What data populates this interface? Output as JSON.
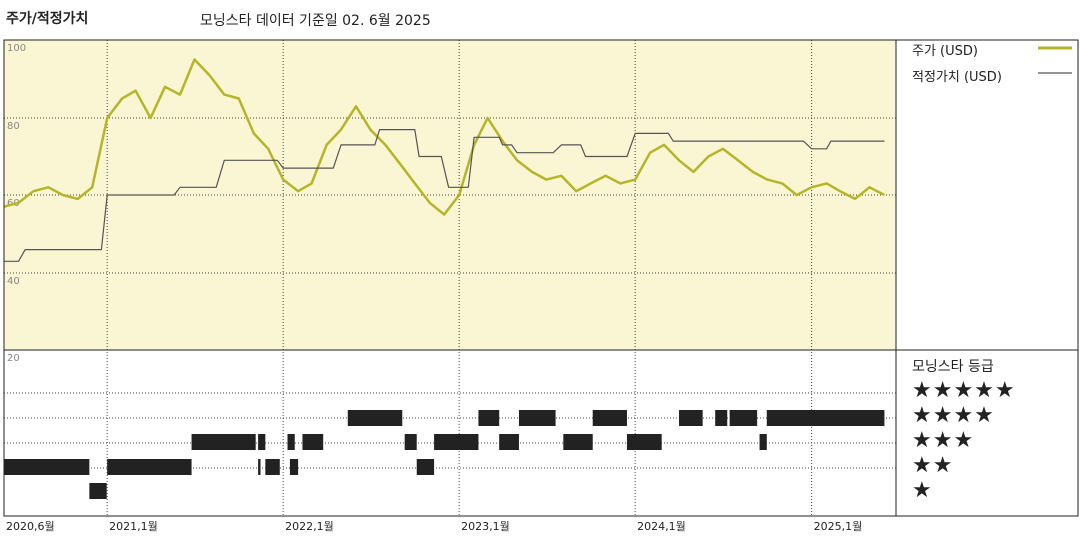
{
  "header": {
    "title": "주가/적정가치",
    "subtitle": "모닝스타 데이터 기준일 02. 6월 2025"
  },
  "legend": {
    "price_label": "주가 (USD)",
    "fair_value_label": "적정가치 (USD)",
    "rating_title": "모닝스타 등급"
  },
  "colors": {
    "price": "#b5b52a",
    "fair_value": "#555555",
    "plot_bg": "#faf5d2",
    "rating_bar": "#222222"
  },
  "rating_levels": [
    "★★★★★",
    "★★★★",
    "★★★",
    "★★",
    "★"
  ],
  "chart_data": {
    "type": "line",
    "title": "",
    "ylim": [
      20,
      100
    ],
    "yticks": [
      20,
      40,
      60,
      80,
      100
    ],
    "xticks": [
      {
        "date": "2020-06-01",
        "label": "2020,6월"
      },
      {
        "date": "2021-01-01",
        "label": "2021,1월"
      },
      {
        "date": "2022-01-01",
        "label": "2022,1월"
      },
      {
        "date": "2023-01-01",
        "label": "2023,1월"
      },
      {
        "date": "2024-01-01",
        "label": "2024,1월"
      },
      {
        "date": "2025-01-01",
        "label": "2025,1월"
      }
    ],
    "series": [
      {
        "name": "주가 (USD)",
        "points": [
          [
            "2020-06-01",
            57
          ],
          [
            "2020-07-01",
            58
          ],
          [
            "2020-08-01",
            61
          ],
          [
            "2020-09-01",
            62
          ],
          [
            "2020-10-01",
            60
          ],
          [
            "2020-11-01",
            59
          ],
          [
            "2020-12-01",
            62
          ],
          [
            "2021-01-01",
            80
          ],
          [
            "2021-02-01",
            85
          ],
          [
            "2021-03-01",
            87
          ],
          [
            "2021-04-01",
            80
          ],
          [
            "2021-05-01",
            88
          ],
          [
            "2021-06-01",
            86
          ],
          [
            "2021-07-01",
            95
          ],
          [
            "2021-08-01",
            91
          ],
          [
            "2021-09-01",
            86
          ],
          [
            "2021-10-01",
            85
          ],
          [
            "2021-11-01",
            76
          ],
          [
            "2021-12-01",
            72
          ],
          [
            "2022-01-01",
            64
          ],
          [
            "2022-02-01",
            61
          ],
          [
            "2022-03-01",
            63
          ],
          [
            "2022-04-01",
            73
          ],
          [
            "2022-05-01",
            77
          ],
          [
            "2022-06-01",
            83
          ],
          [
            "2022-07-01",
            77
          ],
          [
            "2022-08-01",
            73
          ],
          [
            "2022-09-01",
            68
          ],
          [
            "2022-10-01",
            63
          ],
          [
            "2022-11-01",
            58
          ],
          [
            "2022-12-01",
            55
          ],
          [
            "2023-01-01",
            60
          ],
          [
            "2023-02-01",
            73
          ],
          [
            "2023-03-01",
            80
          ],
          [
            "2023-04-01",
            74
          ],
          [
            "2023-05-01",
            69
          ],
          [
            "2023-06-01",
            66
          ],
          [
            "2023-07-01",
            64
          ],
          [
            "2023-08-01",
            65
          ],
          [
            "2023-09-01",
            61
          ],
          [
            "2023-10-01",
            63
          ],
          [
            "2023-11-01",
            65
          ],
          [
            "2023-12-01",
            63
          ],
          [
            "2024-01-01",
            64
          ],
          [
            "2024-02-01",
            71
          ],
          [
            "2024-03-01",
            73
          ],
          [
            "2024-04-01",
            69
          ],
          [
            "2024-05-01",
            66
          ],
          [
            "2024-06-01",
            70
          ],
          [
            "2024-07-01",
            72
          ],
          [
            "2024-08-01",
            69
          ],
          [
            "2024-09-01",
            66
          ],
          [
            "2024-10-01",
            64
          ],
          [
            "2024-11-01",
            63
          ],
          [
            "2024-12-01",
            60
          ],
          [
            "2025-01-01",
            62
          ],
          [
            "2025-02-01",
            63
          ],
          [
            "2025-03-01",
            61
          ],
          [
            "2025-04-01",
            59
          ],
          [
            "2025-05-01",
            62
          ],
          [
            "2025-06-01",
            60
          ]
        ]
      },
      {
        "name": "적정가치 (USD)",
        "points": [
          [
            "2020-06-01",
            43
          ],
          [
            "2020-07-01",
            43
          ],
          [
            "2020-07-15",
            46
          ],
          [
            "2020-12-20",
            46
          ],
          [
            "2021-01-01",
            60
          ],
          [
            "2021-05-20",
            60
          ],
          [
            "2021-06-01",
            62
          ],
          [
            "2021-08-15",
            62
          ],
          [
            "2021-09-01",
            69
          ],
          [
            "2021-12-20",
            69
          ],
          [
            "2022-01-01",
            67
          ],
          [
            "2022-04-15",
            67
          ],
          [
            "2022-05-01",
            73
          ],
          [
            "2022-07-10",
            73
          ],
          [
            "2022-07-20",
            77
          ],
          [
            "2022-10-01",
            77
          ],
          [
            "2022-10-10",
            70
          ],
          [
            "2022-11-25",
            70
          ],
          [
            "2022-12-10",
            62
          ],
          [
            "2023-01-20",
            62
          ],
          [
            "2023-02-01",
            75
          ],
          [
            "2023-03-25",
            75
          ],
          [
            "2023-04-01",
            73
          ],
          [
            "2023-04-20",
            73
          ],
          [
            "2023-05-01",
            71
          ],
          [
            "2023-07-15",
            71
          ],
          [
            "2023-08-01",
            73
          ],
          [
            "2023-09-10",
            73
          ],
          [
            "2023-09-20",
            70
          ],
          [
            "2023-12-15",
            70
          ],
          [
            "2024-01-01",
            76
          ],
          [
            "2024-03-10",
            76
          ],
          [
            "2024-03-20",
            74
          ],
          [
            "2024-12-15",
            74
          ],
          [
            "2025-01-01",
            72
          ],
          [
            "2025-02-01",
            72
          ],
          [
            "2025-02-10",
            74
          ],
          [
            "2025-06-01",
            74
          ]
        ]
      }
    ],
    "rating_history": [
      {
        "stars": 2,
        "start": "2020-06-01",
        "end": "2020-11-25"
      },
      {
        "stars": 1,
        "start": "2020-11-25",
        "end": "2020-12-31"
      },
      {
        "stars": 2,
        "start": "2021-01-01",
        "end": "2021-06-25"
      },
      {
        "stars": 3,
        "start": "2021-06-25",
        "end": "2021-11-05"
      },
      {
        "stars": 3,
        "start": "2021-11-10",
        "end": "2021-11-25"
      },
      {
        "stars": 2,
        "start": "2021-11-10",
        "end": "2021-11-15"
      },
      {
        "stars": 2,
        "start": "2021-11-25",
        "end": "2021-12-25"
      },
      {
        "stars": 3,
        "start": "2022-01-10",
        "end": "2022-01-25"
      },
      {
        "stars": 2,
        "start": "2022-01-15",
        "end": "2022-02-01"
      },
      {
        "stars": 3,
        "start": "2022-02-10",
        "end": "2022-03-25"
      },
      {
        "stars": 4,
        "start": "2022-05-15",
        "end": "2022-09-05"
      },
      {
        "stars": 3,
        "start": "2022-09-10",
        "end": "2022-10-05"
      },
      {
        "stars": 2,
        "start": "2022-10-05",
        "end": "2022-11-10"
      },
      {
        "stars": 3,
        "start": "2022-11-10",
        "end": "2023-02-10"
      },
      {
        "stars": 4,
        "start": "2023-02-10",
        "end": "2023-03-25"
      },
      {
        "stars": 3,
        "start": "2023-03-25",
        "end": "2023-05-05"
      },
      {
        "stars": 4,
        "start": "2023-05-05",
        "end": "2023-07-20"
      },
      {
        "stars": 3,
        "start": "2023-08-05",
        "end": "2023-10-05"
      },
      {
        "stars": 4,
        "start": "2023-10-05",
        "end": "2023-12-15"
      },
      {
        "stars": 3,
        "start": "2023-12-15",
        "end": "2024-02-25"
      },
      {
        "stars": 4,
        "start": "2024-04-01",
        "end": "2024-05-20"
      },
      {
        "stars": 4,
        "start": "2024-06-15",
        "end": "2024-07-10"
      },
      {
        "stars": 4,
        "start": "2024-07-15",
        "end": "2024-09-10"
      },
      {
        "stars": 3,
        "start": "2024-09-15",
        "end": "2024-09-30"
      },
      {
        "stars": 4,
        "start": "2024-09-30",
        "end": "2025-06-01"
      }
    ]
  }
}
